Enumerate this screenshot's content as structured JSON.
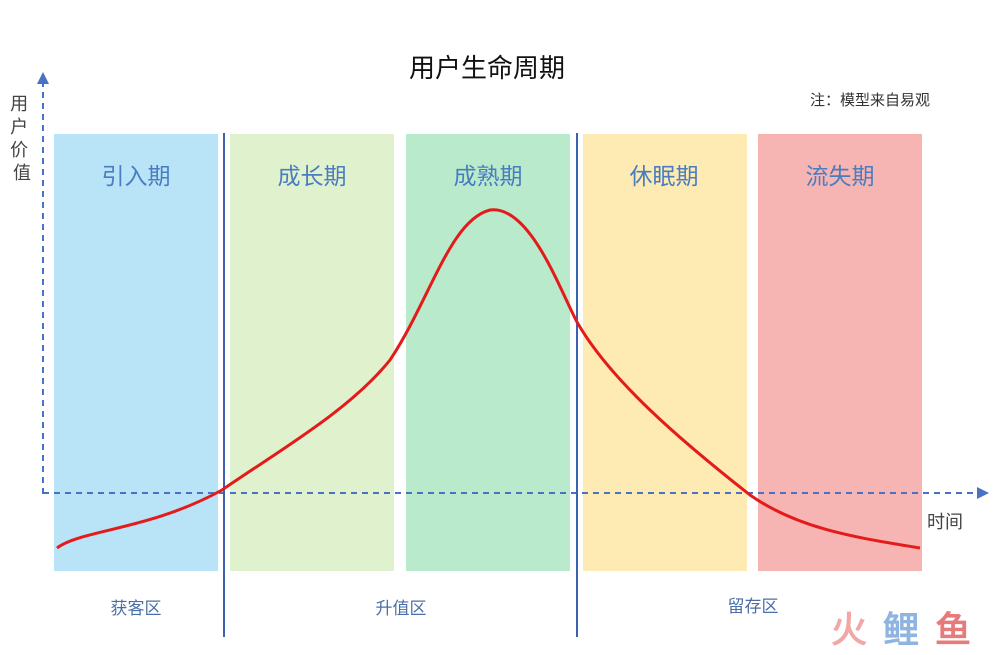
{
  "title": "用户生命周期",
  "note": "注：模型来自易观",
  "y_axis_label": "用户价值",
  "x_axis_label": "时间",
  "stages": [
    {
      "label": "引入期",
      "color": "#b9e3f7"
    },
    {
      "label": "成长期",
      "color": "#e0f2cd"
    },
    {
      "label": "成熟期",
      "color": "#b9eacb"
    },
    {
      "label": "休眠期",
      "color": "#fdebb3"
    },
    {
      "label": "流失期",
      "color": "#f6b4b3"
    }
  ],
  "zones": [
    {
      "label": "获客区"
    },
    {
      "label": "升值区"
    },
    {
      "label": "留存区"
    }
  ],
  "colors": {
    "curve": "#e31b1b",
    "axis": "#4a72c4",
    "divider": "#3b63ad",
    "stage_text": "#4a7cc0",
    "zone_text": "#4a6fa8"
  },
  "logo": {
    "part1": "火",
    "part2": "鲤",
    "part3": "鱼",
    "colors": [
      "#f2a7a7",
      "#8fb4e2",
      "#e77b7b"
    ]
  }
}
